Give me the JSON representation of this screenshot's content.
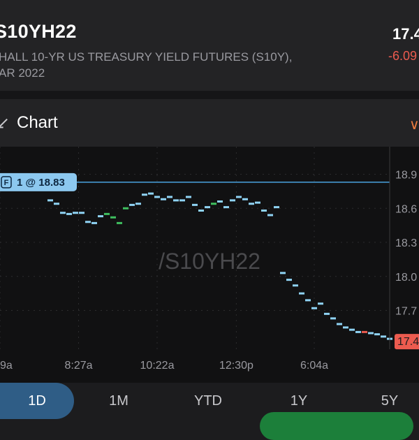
{
  "header": {
    "symbol": "S10YH22",
    "description_line1": "HALL 10-YR US TREASURY YIELD FUTURES (S10Y),",
    "description_line2": "AR 2022",
    "price": "17.4",
    "change": "-6.09"
  },
  "chart_section": {
    "title": "Chart"
  },
  "chart_data": {
    "type": "line",
    "watermark": "/S10YH22",
    "order_badge": "1 @ 18.83",
    "order_badge_icon": "F",
    "order_level": 18.83,
    "y_ticks": [
      "18.9",
      "18.6",
      "18.3",
      "18.0",
      "17.7"
    ],
    "y_tick_values": [
      18.9,
      18.6,
      18.3,
      18.0,
      17.7
    ],
    "ylim": [
      17.42,
      19.02
    ],
    "x_ticks": [
      "9a",
      "8:27a",
      "10:22a",
      "12:30p",
      "6:04a"
    ],
    "x_tick_positions": [
      0,
      12.5,
      25,
      37.6,
      50
    ],
    "current_value_label": "17.4",
    "x": [
      8,
      9,
      10,
      11,
      12,
      13,
      14,
      15,
      16,
      17,
      18,
      19,
      20,
      21,
      22,
      23,
      24,
      25,
      26,
      27,
      28,
      29,
      30,
      31,
      32,
      33,
      34,
      35,
      36,
      37,
      38,
      39,
      40,
      41,
      42,
      43,
      44,
      45,
      46,
      47,
      48,
      49,
      50,
      51,
      52,
      53,
      54,
      55,
      56,
      57,
      58,
      59,
      60,
      61,
      62
    ],
    "values": [
      18.67,
      18.64,
      18.56,
      18.55,
      18.56,
      18.56,
      18.48,
      18.47,
      18.53,
      18.55,
      18.52,
      18.47,
      18.6,
      18.63,
      18.64,
      18.72,
      18.73,
      18.7,
      18.68,
      18.7,
      18.67,
      18.67,
      18.7,
      18.63,
      18.58,
      18.61,
      18.64,
      18.66,
      18.61,
      18.67,
      18.7,
      18.68,
      18.64,
      18.65,
      18.58,
      18.54,
      18.61,
      18.03,
      17.97,
      17.92,
      17.85,
      17.79,
      17.72,
      17.76,
      17.67,
      17.63,
      17.58,
      17.55,
      17.53,
      17.51,
      17.51,
      17.5,
      17.49,
      17.47,
      17.45
    ],
    "bar_colors": [
      "#8fd3f4",
      "#8fd3f4",
      "#8fd3f4",
      "#8fd3f4",
      "#8fd3f4",
      "#8fd3f4",
      "#8fd3f4",
      "#8fd3f4",
      "#8fd3f4",
      "#3fbf5f",
      "#3fbf5f",
      "#3fbf5f",
      "#3fbf5f",
      "#8fd3f4",
      "#8fd3f4",
      "#8fd3f4",
      "#8fd3f4",
      "#8fd3f4",
      "#8fd3f4",
      "#8fd3f4",
      "#8fd3f4",
      "#8fd3f4",
      "#8fd3f4",
      "#8fd3f4",
      "#8fd3f4",
      "#8fd3f4",
      "#3fbf5f",
      "#8fd3f4",
      "#8fd3f4",
      "#8fd3f4",
      "#8fd3f4",
      "#8fd3f4",
      "#8fd3f4",
      "#8fd3f4",
      "#8fd3f4",
      "#8fd3f4",
      "#8fd3f4",
      "#8fd3f4",
      "#8fd3f4",
      "#8fd3f4",
      "#8fd3f4",
      "#8fd3f4",
      "#8fd3f4",
      "#8fd3f4",
      "#8fd3f4",
      "#8fd3f4",
      "#8fd3f4",
      "#8fd3f4",
      "#8fd3f4",
      "#8fd3f4",
      "#ec5b4f",
      "#8fd3f4",
      "#8fd3f4",
      "#8fd3f4",
      "#8fd3f4"
    ],
    "colors": {
      "up": "#8fd3f4",
      "green": "#3fbf5f",
      "red": "#ec5b4f",
      "order_line": "#4aa3e0",
      "badge_fill": "#8cc8ef",
      "current_label_fill": "#ec5b4f",
      "axis": "#9a9aa0",
      "grid": "#2c2c2e",
      "watermark": "#4a4a4d"
    }
  },
  "tabs": [
    {
      "label": "1D",
      "active": true
    },
    {
      "label": "1M",
      "active": false
    },
    {
      "label": "YTD",
      "active": false
    },
    {
      "label": "1Y",
      "active": false
    },
    {
      "label": "5Y",
      "active": false
    }
  ]
}
